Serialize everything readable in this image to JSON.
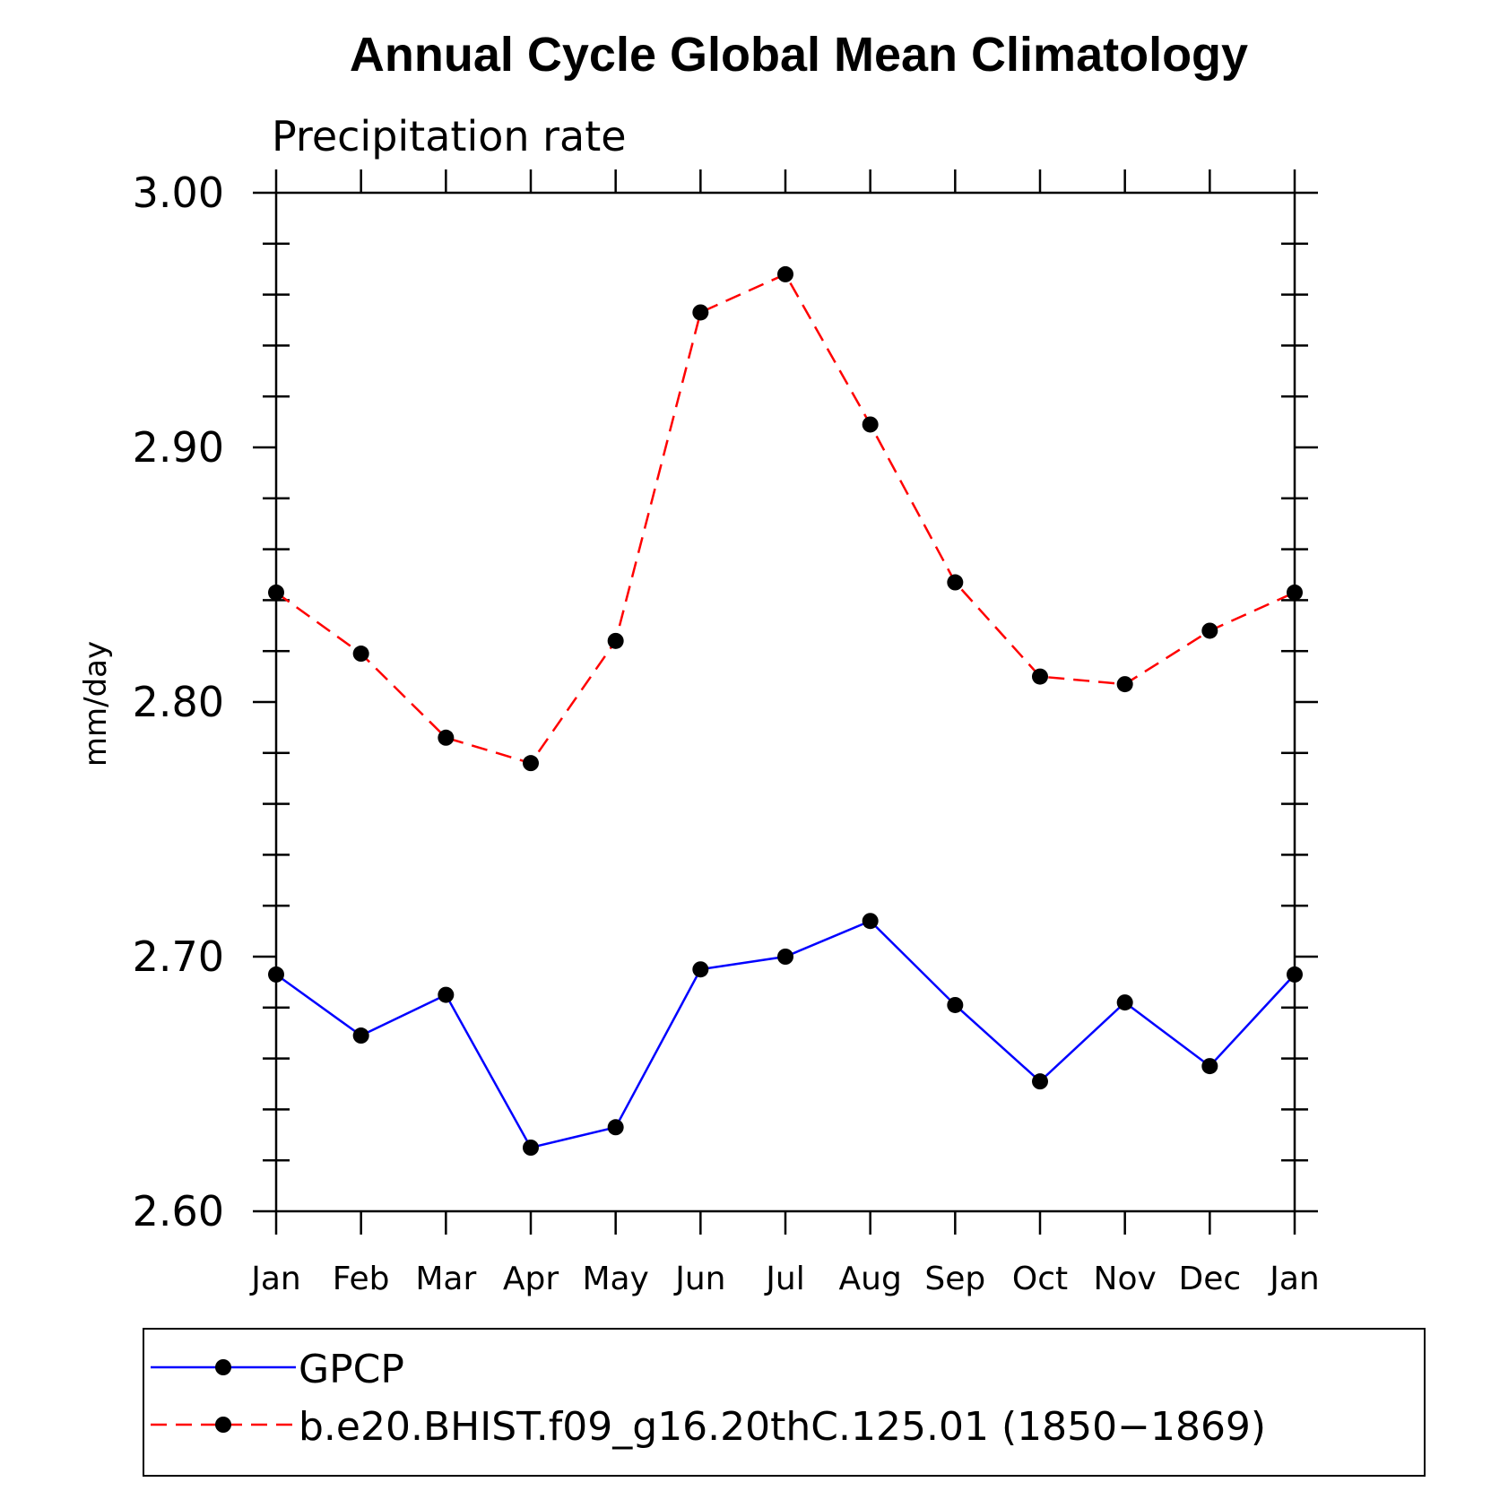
{
  "chart_data": {
    "type": "line",
    "title": "Annual Cycle Global Mean Climatology",
    "subtitle": "Precipitation rate",
    "xlabel": "",
    "ylabel": "mm/day",
    "categories": [
      "Jan",
      "Feb",
      "Mar",
      "Apr",
      "May",
      "Jun",
      "Jul",
      "Aug",
      "Sep",
      "Oct",
      "Nov",
      "Dec",
      "Jan"
    ],
    "ylim": [
      2.6,
      3.0
    ],
    "yticks": [
      "2.60",
      "2.70",
      "2.80",
      "2.90",
      "3.00"
    ],
    "grid": false,
    "legend_position": "bottom",
    "series": [
      {
        "name": "GPCP",
        "color": "#0000ff",
        "line_style": "solid",
        "marker": "filled-circle",
        "values": [
          2.693,
          2.669,
          2.685,
          2.625,
          2.633,
          2.695,
          2.7,
          2.714,
          2.681,
          2.651,
          2.682,
          2.657,
          2.693
        ]
      },
      {
        "name": "b.e20.BHIST.f09_g16.20thC.125.01 (1850−1869)",
        "color": "#ff0000",
        "line_style": "dashed",
        "marker": "filled-circle",
        "values": [
          2.843,
          2.819,
          2.786,
          2.776,
          2.824,
          2.953,
          2.968,
          2.909,
          2.847,
          2.81,
          2.807,
          2.828,
          2.843
        ]
      }
    ]
  }
}
